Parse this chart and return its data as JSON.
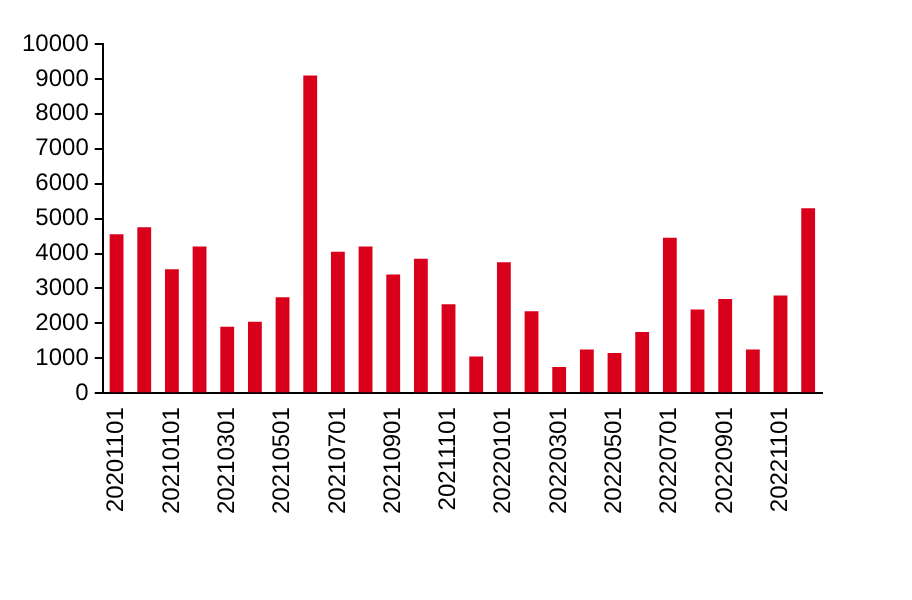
{
  "chart_data": {
    "type": "bar",
    "categories": [
      "20201101",
      null,
      "20210101",
      null,
      "20210301",
      null,
      "20210501",
      null,
      "20210701",
      null,
      "20210901",
      null,
      "20211101",
      null,
      "20220101",
      null,
      "20220301",
      null,
      "20220501",
      null,
      "20220701",
      null,
      "20220901",
      null,
      "20221101",
      null
    ],
    "values": [
      4550,
      4750,
      3550,
      4200,
      1900,
      2050,
      2750,
      9100,
      4050,
      4200,
      3400,
      3850,
      2550,
      1050,
      3750,
      2350,
      750,
      1250,
      1150,
      1750,
      4450,
      2400,
      2700,
      1250,
      2800,
      5300
    ],
    "color": "#d9001b",
    "ylim": [
      0,
      10000
    ],
    "yticks": [
      0,
      1000,
      2000,
      3000,
      4000,
      5000,
      6000,
      7000,
      8000,
      9000,
      10000
    ],
    "grid": false,
    "legend": false
  }
}
